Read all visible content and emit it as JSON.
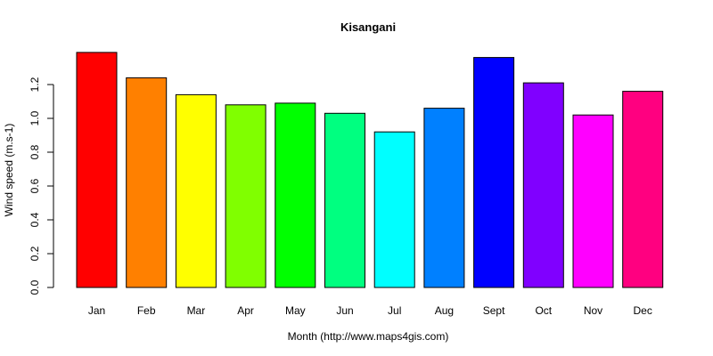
{
  "chart_data": {
    "type": "bar",
    "title": "Kisangani",
    "xlabel": "Month (http://www.maps4gis.com)",
    "ylabel": "Wind speed (m.s-1)",
    "categories": [
      "Jan",
      "Feb",
      "Mar",
      "Apr",
      "May",
      "Jun",
      "Jul",
      "Aug",
      "Sept",
      "Oct",
      "Nov",
      "Dec"
    ],
    "values": [
      1.39,
      1.24,
      1.14,
      1.08,
      1.09,
      1.03,
      0.92,
      1.06,
      1.36,
      1.21,
      1.02,
      1.16
    ],
    "colors": [
      "#FF0000",
      "#FF8000",
      "#FFFF00",
      "#80FF00",
      "#00FF00",
      "#00FF80",
      "#00FFFF",
      "#0080FF",
      "#0000FF",
      "#8000FF",
      "#FF00FF",
      "#FF0080"
    ],
    "yticks": [
      "0.0",
      "0.2",
      "0.4",
      "0.6",
      "0.8",
      "1.0",
      "1.2"
    ],
    "ylim": [
      0,
      1.39
    ],
    "grid": false,
    "legend": "none"
  }
}
